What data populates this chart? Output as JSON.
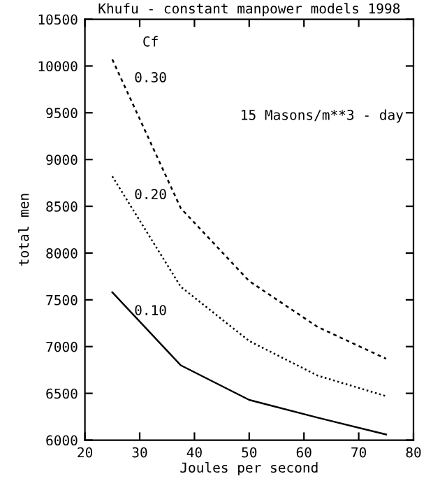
{
  "chart_data": {
    "type": "line",
    "title": "Khufu - constant manpower models 1998",
    "xlabel": "Joules per second",
    "ylabel": "total men",
    "legend_title": "Cf",
    "annotations": [
      "15 Masons/m**3 - day"
    ],
    "x": [
      25,
      37.5,
      50,
      62.5,
      75
    ],
    "series": [
      {
        "name": "0.10",
        "color": "#000000",
        "line_style": "solid",
        "values": [
          7580,
          6800,
          6430,
          6240,
          6060
        ]
      },
      {
        "name": "0.20",
        "color": "#000000",
        "line_style": "dotted",
        "values": [
          8820,
          7640,
          7060,
          6690,
          6470
        ]
      },
      {
        "name": "0.30",
        "color": "#000000",
        "line_style": "dashed",
        "values": [
          10070,
          8480,
          7700,
          7210,
          6870
        ]
      }
    ],
    "xlim": [
      20,
      80
    ],
    "xticks": [
      20,
      30,
      40,
      50,
      60,
      70,
      80
    ],
    "ylim": [
      6000,
      10500
    ],
    "yticks": [
      6000,
      6500,
      7000,
      7500,
      8000,
      8500,
      9000,
      9500,
      10000,
      10500
    ],
    "grid": false,
    "legend": false,
    "marker": "none"
  }
}
